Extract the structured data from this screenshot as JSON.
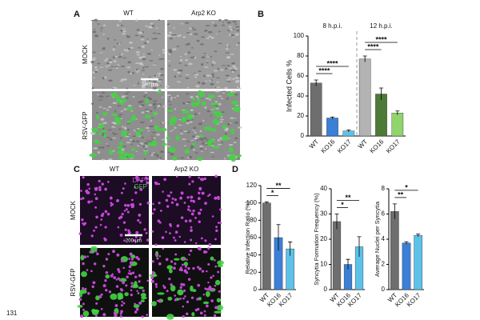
{
  "page_number": "131",
  "panels": {
    "A": {
      "label": "A",
      "columns": [
        "WT",
        "Arp2 KO"
      ],
      "rows": [
        "MOCK",
        "RSV-GFP"
      ],
      "scale_bar": "200 µm"
    },
    "B": {
      "label": "B"
    },
    "C": {
      "label": "C",
      "columns": [
        "WT",
        "Arp2 KO"
      ],
      "rows": [
        "MOCK",
        "RSV-GFP"
      ],
      "channels": [
        "DAPI",
        "GFP"
      ],
      "scale_bar": "200 µm"
    },
    "D": {
      "label": "D"
    }
  },
  "chart_data": [
    {
      "type": "bar",
      "y_label": "Infected Cells %",
      "groups": [
        "8 h.p.i.",
        "12 h.p.i."
      ],
      "categories": [
        "WT",
        "KO16",
        "KO17",
        "WT",
        "KO16",
        "KO17"
      ],
      "values": [
        53,
        18,
        5,
        77,
        42,
        23
      ],
      "errors": [
        3,
        1,
        1,
        3,
        6,
        2
      ],
      "colors": [
        "#6e6e6e",
        "#3b7fd6",
        "#5cc2ea",
        "#b3b3b3",
        "#4d7a37",
        "#90d46c"
      ],
      "ylim": [
        0,
        100
      ],
      "yticks": [
        0,
        20,
        40,
        60,
        80,
        100
      ],
      "significance": [
        "****",
        "****",
        "****",
        "****"
      ]
    },
    {
      "type": "bar",
      "y_label": "Relative Infection Ratio (%)",
      "categories": [
        "WT",
        "KO16",
        "KO17"
      ],
      "values": [
        100,
        60,
        47
      ],
      "errors": [
        1,
        15,
        8
      ],
      "colors": [
        "#6e6e6e",
        "#3b7fd6",
        "#5cc2ea"
      ],
      "ylim": [
        0,
        120
      ],
      "yticks": [
        0,
        20,
        40,
        60,
        80,
        100,
        120
      ],
      "significance": [
        "*",
        "**"
      ]
    },
    {
      "type": "bar",
      "y_label": "Syncytia Formation Frequency (%)",
      "categories": [
        "WT",
        "KO16",
        "KO17"
      ],
      "values": [
        27,
        10,
        17
      ],
      "errors": [
        3,
        2,
        4
      ],
      "colors": [
        "#6e6e6e",
        "#3b7fd6",
        "#5cc2ea"
      ],
      "ylim": [
        0,
        40
      ],
      "yticks": [
        0,
        10,
        20,
        30,
        40
      ],
      "significance": [
        "*",
        "**"
      ]
    },
    {
      "type": "bar",
      "y_label": "Average Nuclei per Syncytia",
      "categories": [
        "WT",
        "KO16",
        "KO17"
      ],
      "values": [
        6.2,
        3.7,
        4.3
      ],
      "errors": [
        0.6,
        0.1,
        0.1
      ],
      "colors": [
        "#6e6e6e",
        "#3b7fd6",
        "#5cc2ea"
      ],
      "ylim": [
        0,
        8
      ],
      "yticks": [
        0,
        2,
        4,
        6,
        8
      ],
      "significance": [
        "**",
        "*"
      ]
    }
  ]
}
